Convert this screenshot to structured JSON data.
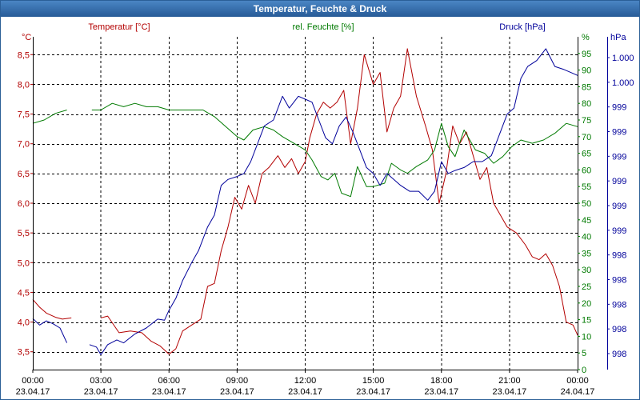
{
  "window": {
    "title": "Temperatur, Feuchte & Druck"
  },
  "colors": {
    "temperature": "#b30000",
    "humidity": "#007a00",
    "pressure": "#00009a",
    "grid": "#000000"
  },
  "chart_data": {
    "type": "line",
    "title": "Temperatur, Feuchte & Druck",
    "grid": true,
    "x_ticks": [
      {
        "time": "00:00",
        "date": "23.04.17"
      },
      {
        "time": "03:00",
        "date": "23.04.17"
      },
      {
        "time": "06:00",
        "date": "23.04.17"
      },
      {
        "time": "09:00",
        "date": "23.04.17"
      },
      {
        "time": "12:00",
        "date": "23.04.17"
      },
      {
        "time": "15:00",
        "date": "23.04.17"
      },
      {
        "time": "18:00",
        "date": "23.04.17"
      },
      {
        "time": "21:00",
        "date": "23.04.17"
      },
      {
        "time": "00:00",
        "date": "24.04.17"
      }
    ],
    "xlim": [
      0,
      24
    ],
    "axes": {
      "temperature": {
        "unit": "°C",
        "label": "Temperatur [°C]",
        "ylim": [
          3.2,
          8.8
        ],
        "ticks": [
          "3,5",
          "4,0",
          "4,5",
          "5,0",
          "5,5",
          "6,0",
          "6,5",
          "7,0",
          "7,5",
          "8,0",
          "8,5"
        ]
      },
      "humidity": {
        "unit": "%",
        "label": "rel. Feuchte [%]",
        "ylim": [
          0,
          100
        ],
        "ticks": [
          "0",
          "5",
          "10",
          "15",
          "20",
          "25",
          "30",
          "35",
          "40",
          "45",
          "50",
          "55",
          "60",
          "65",
          "70",
          "75",
          "80",
          "85",
          "90",
          "95"
        ]
      },
      "pressure": {
        "unit": "hPa",
        "label": "Druck [hPa]",
        "ticks": [
          "998",
          "998",
          "998",
          "998",
          "998",
          "999",
          "999",
          "999",
          "999",
          "999",
          "999",
          "1.000",
          "1.000"
        ]
      }
    },
    "series": [
      {
        "name": "Temperatur [°C]",
        "axis": "temperature",
        "color": "#b30000",
        "segments": [
          [
            [
              0,
              4.38
            ],
            [
              0.3,
              4.25
            ],
            [
              0.6,
              4.15
            ],
            [
              1.0,
              4.08
            ],
            [
              1.3,
              4.05
            ],
            [
              1.7,
              4.07
            ]
          ],
          [
            [
              3.0,
              4.07
            ],
            [
              3.3,
              4.1
            ],
            [
              3.8,
              3.82
            ],
            [
              4.3,
              3.85
            ],
            [
              4.8,
              3.82
            ],
            [
              5.2,
              3.68
            ],
            [
              5.6,
              3.6
            ],
            [
              6.0,
              3.46
            ],
            [
              6.3,
              3.55
            ],
            [
              6.6,
              3.85
            ],
            [
              7.0,
              3.95
            ],
            [
              7.4,
              4.05
            ],
            [
              7.7,
              4.6
            ],
            [
              8.0,
              4.65
            ],
            [
              8.3,
              5.2
            ],
            [
              8.6,
              5.6
            ],
            [
              8.9,
              6.1
            ],
            [
              9.2,
              5.9
            ],
            [
              9.5,
              6.3
            ],
            [
              9.8,
              6.0
            ],
            [
              10.1,
              6.5
            ],
            [
              10.4,
              6.6
            ],
            [
              10.8,
              6.8
            ],
            [
              11.1,
              6.6
            ],
            [
              11.4,
              6.75
            ],
            [
              11.7,
              6.5
            ],
            [
              12.0,
              6.7
            ],
            [
              12.2,
              7.1
            ],
            [
              12.5,
              7.5
            ],
            [
              12.8,
              7.7
            ],
            [
              13.1,
              7.6
            ],
            [
              13.4,
              7.7
            ],
            [
              13.7,
              7.9
            ],
            [
              14.0,
              7.0
            ],
            [
              14.3,
              7.6
            ],
            [
              14.6,
              8.5
            ],
            [
              15.0,
              8.0
            ],
            [
              15.3,
              8.2
            ],
            [
              15.6,
              7.2
            ],
            [
              15.9,
              7.6
            ],
            [
              16.2,
              7.8
            ],
            [
              16.5,
              8.6
            ],
            [
              16.9,
              7.8
            ],
            [
              17.3,
              7.3
            ],
            [
              17.6,
              6.9
            ],
            [
              17.9,
              6.0
            ],
            [
              18.2,
              6.5
            ],
            [
              18.5,
              7.3
            ],
            [
              18.8,
              7.0
            ],
            [
              19.1,
              7.2
            ],
            [
              19.4,
              6.8
            ],
            [
              19.7,
              6.4
            ],
            [
              20.0,
              6.6
            ],
            [
              20.3,
              6.0
            ],
            [
              20.6,
              5.8
            ],
            [
              20.9,
              5.6
            ],
            [
              21.3,
              5.5
            ],
            [
              21.7,
              5.3
            ],
            [
              22.0,
              5.1
            ],
            [
              22.3,
              5.05
            ],
            [
              22.6,
              5.15
            ],
            [
              22.9,
              4.95
            ],
            [
              23.2,
              4.6
            ],
            [
              23.5,
              4.0
            ],
            [
              23.8,
              3.95
            ],
            [
              24.0,
              3.78
            ]
          ]
        ]
      },
      {
        "name": "rel. Feuchte [%]",
        "axis": "humidity",
        "color": "#007a00",
        "segments": [
          [
            [
              0,
              74
            ],
            [
              0.5,
              75
            ],
            [
              1.0,
              77
            ],
            [
              1.5,
              78
            ]
          ],
          [
            [
              2.6,
              78
            ],
            [
              3.0,
              78
            ],
            [
              3.5,
              80
            ],
            [
              4.0,
              79
            ],
            [
              4.5,
              80
            ],
            [
              5.0,
              79
            ],
            [
              5.5,
              79
            ],
            [
              6.0,
              78
            ],
            [
              6.5,
              78
            ],
            [
              7.0,
              78
            ],
            [
              7.5,
              78
            ],
            [
              8.0,
              76
            ],
            [
              8.5,
              73
            ],
            [
              9.0,
              70
            ],
            [
              9.3,
              69
            ],
            [
              9.7,
              72
            ],
            [
              10.2,
              73
            ],
            [
              10.6,
              72
            ],
            [
              11.0,
              70
            ],
            [
              11.5,
              68
            ],
            [
              12.0,
              66
            ],
            [
              12.3,
              63
            ],
            [
              12.7,
              58
            ],
            [
              13.0,
              57
            ],
            [
              13.3,
              59
            ],
            [
              13.6,
              53
            ],
            [
              14.0,
              52
            ],
            [
              14.3,
              61
            ],
            [
              14.7,
              55
            ],
            [
              15.0,
              55
            ],
            [
              15.5,
              56
            ],
            [
              15.8,
              62
            ],
            [
              16.2,
              60
            ],
            [
              16.5,
              59
            ],
            [
              16.9,
              61
            ],
            [
              17.4,
              63
            ],
            [
              17.7,
              66
            ],
            [
              18.0,
              74
            ],
            [
              18.3,
              67
            ],
            [
              18.6,
              64
            ],
            [
              19.0,
              72
            ],
            [
              19.5,
              66
            ],
            [
              19.9,
              65
            ],
            [
              20.3,
              62
            ],
            [
              20.7,
              64
            ],
            [
              21.1,
              67
            ],
            [
              21.5,
              69
            ],
            [
              22.0,
              68
            ],
            [
              22.5,
              69
            ],
            [
              23.0,
              71
            ],
            [
              23.5,
              74
            ],
            [
              24.0,
              73
            ]
          ]
        ]
      },
      {
        "name": "Druck [hPa]",
        "axis": "pressure",
        "color": "#00009a",
        "segments": [
          [
            [
              0,
              4.06
            ],
            [
              0.3,
              3.95
            ],
            [
              0.6,
              4.02
            ],
            [
              0.9,
              3.97
            ],
            [
              1.2,
              3.9
            ],
            [
              1.5,
              3.65
            ]
          ],
          [
            [
              2.5,
              3.62
            ],
            [
              2.8,
              3.58
            ],
            [
              3.0,
              3.45
            ],
            [
              3.3,
              3.62
            ],
            [
              3.7,
              3.7
            ],
            [
              4.0,
              3.65
            ],
            [
              4.5,
              3.8
            ],
            [
              5.0,
              3.9
            ],
            [
              5.5,
              4.05
            ],
            [
              5.8,
              4.03
            ],
            [
              6.0,
              4.2
            ],
            [
              6.3,
              4.4
            ],
            [
              6.6,
              4.7
            ],
            [
              7.0,
              5.0
            ],
            [
              7.3,
              5.2
            ],
            [
              7.7,
              5.6
            ],
            [
              8.0,
              5.8
            ],
            [
              8.3,
              6.3
            ],
            [
              8.6,
              6.4
            ],
            [
              9.0,
              6.45
            ],
            [
              9.3,
              6.5
            ],
            [
              9.6,
              6.7
            ],
            [
              9.9,
              7.0
            ],
            [
              10.2,
              7.3
            ],
            [
              10.6,
              7.4
            ],
            [
              11.0,
              7.8
            ],
            [
              11.3,
              7.6
            ],
            [
              11.7,
              7.8
            ],
            [
              12.0,
              7.75
            ],
            [
              12.3,
              7.7
            ],
            [
              12.6,
              7.4
            ],
            [
              12.9,
              7.1
            ],
            [
              13.2,
              7.0
            ],
            [
              13.5,
              7.3
            ],
            [
              13.8,
              7.45
            ],
            [
              14.1,
              7.2
            ],
            [
              14.4,
              6.9
            ],
            [
              14.7,
              6.6
            ],
            [
              15.0,
              6.5
            ],
            [
              15.3,
              6.3
            ],
            [
              15.6,
              6.5
            ],
            [
              15.9,
              6.4
            ],
            [
              16.2,
              6.3
            ],
            [
              16.6,
              6.2
            ],
            [
              17.0,
              6.2
            ],
            [
              17.4,
              6.05
            ],
            [
              17.7,
              6.2
            ],
            [
              18.0,
              6.7
            ],
            [
              18.3,
              6.5
            ],
            [
              18.6,
              6.55
            ],
            [
              19.0,
              6.6
            ],
            [
              19.4,
              6.7
            ],
            [
              19.8,
              6.7
            ],
            [
              20.2,
              6.8
            ],
            [
              20.6,
              7.2
            ],
            [
              20.9,
              7.5
            ],
            [
              21.2,
              7.6
            ],
            [
              21.5,
              8.1
            ],
            [
              21.8,
              8.3
            ],
            [
              22.2,
              8.4
            ],
            [
              22.6,
              8.6
            ],
            [
              23.0,
              8.3
            ],
            [
              23.4,
              8.25
            ],
            [
              23.7,
              8.2
            ],
            [
              24.0,
              8.15
            ]
          ]
        ]
      }
    ]
  }
}
